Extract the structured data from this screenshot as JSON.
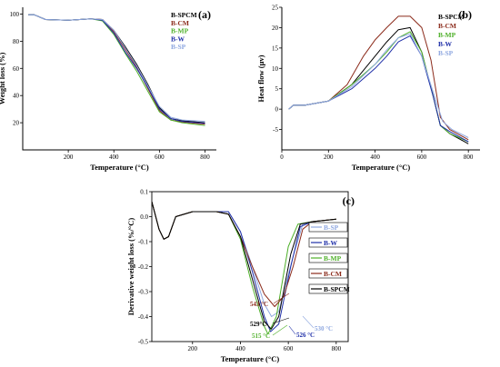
{
  "chart_data": [
    {
      "panel": "(a)",
      "type": "line",
      "xlabel": "Temperature (°C)",
      "ylabel": "Weight loss (%)",
      "xlim": [
        0,
        850
      ],
      "ylim": [
        0,
        105
      ],
      "xticks": [
        200,
        400,
        600,
        800
      ],
      "yticks": [
        20,
        40,
        60,
        80,
        100
      ],
      "legend_position": "top-right",
      "series": [
        {
          "name": "B-SPCM",
          "color": "#000000",
          "points": [
            [
              25,
              99.5
            ],
            [
              50,
              99.5
            ],
            [
              100,
              96
            ],
            [
              200,
              95.5
            ],
            [
              300,
              96.5
            ],
            [
              350,
              96
            ],
            [
              400,
              88
            ],
            [
              450,
              76
            ],
            [
              500,
              63
            ],
            [
              550,
              48
            ],
            [
              600,
              31
            ],
            [
              650,
              23
            ],
            [
              700,
              21.5
            ],
            [
              800,
              20
            ]
          ]
        },
        {
          "name": "B-CM",
          "color": "#8b2a1a",
          "points": [
            [
              25,
              99.5
            ],
            [
              50,
              99.5
            ],
            [
              100,
              96
            ],
            [
              200,
              95.5
            ],
            [
              300,
              96.5
            ],
            [
              350,
              96
            ],
            [
              400,
              87
            ],
            [
              450,
              74
            ],
            [
              500,
              61
            ],
            [
              550,
              45
            ],
            [
              600,
              29
            ],
            [
              650,
              22
            ],
            [
              700,
              20.5
            ],
            [
              800,
              19
            ]
          ]
        },
        {
          "name": "B-MP",
          "color": "#4fb02a",
          "points": [
            [
              25,
              99.5
            ],
            [
              50,
              99.5
            ],
            [
              100,
              96
            ],
            [
              200,
              95.5
            ],
            [
              300,
              96.5
            ],
            [
              350,
              95
            ],
            [
              400,
              85
            ],
            [
              450,
              71
            ],
            [
              500,
              58
            ],
            [
              550,
              43
            ],
            [
              600,
              28
            ],
            [
              650,
              22
            ],
            [
              700,
              20
            ],
            [
              800,
              18
            ]
          ]
        },
        {
          "name": "B-W",
          "color": "#1f2fa8",
          "points": [
            [
              25,
              99.5
            ],
            [
              50,
              99.5
            ],
            [
              100,
              96
            ],
            [
              200,
              95.5
            ],
            [
              300,
              96.5
            ],
            [
              350,
              95.5
            ],
            [
              400,
              86
            ],
            [
              450,
              72
            ],
            [
              500,
              60
            ],
            [
              550,
              46
            ],
            [
              600,
              30
            ],
            [
              650,
              23
            ],
            [
              700,
              21
            ],
            [
              800,
              19.5
            ]
          ]
        },
        {
          "name": "B-SP",
          "color": "#8fa8e0",
          "points": [
            [
              25,
              99.5
            ],
            [
              50,
              99.5
            ],
            [
              100,
              96
            ],
            [
              200,
              95.5
            ],
            [
              300,
              96.5
            ],
            [
              350,
              96
            ],
            [
              400,
              88
            ],
            [
              450,
              75
            ],
            [
              500,
              62
            ],
            [
              550,
              47
            ],
            [
              600,
              32
            ],
            [
              650,
              24
            ],
            [
              700,
              22
            ],
            [
              800,
              21
            ]
          ]
        }
      ]
    },
    {
      "panel": "(b)",
      "type": "line",
      "xlabel": "Temperature (°C)",
      "ylabel": "Heat flow (μv)",
      "xlim": [
        0,
        850
      ],
      "ylim": [
        -10,
        25
      ],
      "xticks": [
        0,
        200,
        400,
        600,
        800
      ],
      "yticks": [
        -5,
        0,
        5,
        10,
        15,
        20,
        25
      ],
      "legend_position": "top-right",
      "series": [
        {
          "name": "B-SPCM",
          "color": "#000000",
          "points": [
            [
              30,
              0
            ],
            [
              50,
              1
            ],
            [
              100,
              1
            ],
            [
              200,
              2
            ],
            [
              300,
              6
            ],
            [
              400,
              13
            ],
            [
              450,
              16.5
            ],
            [
              500,
              19.5
            ],
            [
              550,
              20
            ],
            [
              600,
              14
            ],
            [
              650,
              3
            ],
            [
              680,
              -4
            ],
            [
              720,
              -6
            ],
            [
              800,
              -8.5
            ]
          ]
        },
        {
          "name": "B-CM",
          "color": "#8b2a1a",
          "points": [
            [
              30,
              0
            ],
            [
              50,
              1
            ],
            [
              100,
              1
            ],
            [
              200,
              2
            ],
            [
              280,
              6
            ],
            [
              350,
              13
            ],
            [
              400,
              17
            ],
            [
              450,
              20
            ],
            [
              500,
              22.8
            ],
            [
              550,
              22.8
            ],
            [
              600,
              20
            ],
            [
              640,
              12
            ],
            [
              680,
              -2
            ],
            [
              720,
              -5
            ],
            [
              800,
              -7.5
            ]
          ]
        },
        {
          "name": "B-MP",
          "color": "#4fb02a",
          "points": [
            [
              30,
              0
            ],
            [
              50,
              1
            ],
            [
              100,
              1
            ],
            [
              200,
              2
            ],
            [
              300,
              6
            ],
            [
              400,
              11
            ],
            [
              450,
              14
            ],
            [
              500,
              17.5
            ],
            [
              550,
              19
            ],
            [
              600,
              14
            ],
            [
              650,
              3
            ],
            [
              680,
              -4
            ],
            [
              720,
              -6
            ],
            [
              800,
              -8
            ]
          ]
        },
        {
          "name": "B-W",
          "color": "#1f2fa8",
          "points": [
            [
              30,
              0
            ],
            [
              50,
              1
            ],
            [
              100,
              1
            ],
            [
              200,
              2
            ],
            [
              300,
              5
            ],
            [
              400,
              10
            ],
            [
              450,
              13
            ],
            [
              500,
              16.5
            ],
            [
              550,
              18
            ],
            [
              600,
              13
            ],
            [
              650,
              3
            ],
            [
              680,
              -4
            ],
            [
              720,
              -5.5
            ],
            [
              800,
              -8
            ]
          ]
        },
        {
          "name": "B-SP",
          "color": "#8fa8e0",
          "points": [
            [
              30,
              0
            ],
            [
              50,
              1
            ],
            [
              100,
              1
            ],
            [
              200,
              2
            ],
            [
              300,
              5.5
            ],
            [
              400,
              11
            ],
            [
              450,
              14.5
            ],
            [
              500,
              17.5
            ],
            [
              550,
              18.5
            ],
            [
              600,
              13
            ],
            [
              650,
              4
            ],
            [
              690,
              -3
            ],
            [
              730,
              -5
            ],
            [
              800,
              -7
            ]
          ]
        }
      ]
    },
    {
      "panel": "(c)",
      "type": "line",
      "xlabel": "Temperature (°C)",
      "ylabel": "Derivative weight loss (%/°C)",
      "xlim": [
        30,
        850
      ],
      "ylim": [
        -0.5,
        0.1
      ],
      "xticks": [
        200,
        400,
        600,
        800
      ],
      "yticks": [
        0.1,
        0.0,
        -0.1,
        -0.2,
        -0.3,
        -0.4,
        -0.5
      ],
      "legend_position": "right",
      "series": [
        {
          "name": "B-SP",
          "color": "#8fa8e0",
          "points": [
            [
              30,
              0.06
            ],
            [
              60,
              -0.05
            ],
            [
              80,
              -0.09
            ],
            [
              100,
              -0.08
            ],
            [
              130,
              0.0
            ],
            [
              200,
              0.02
            ],
            [
              300,
              0.02
            ],
            [
              350,
              0.02
            ],
            [
              400,
              -0.06
            ],
            [
              450,
              -0.2
            ],
            [
              500,
              -0.35
            ],
            [
              530,
              -0.4
            ],
            [
              560,
              -0.38
            ],
            [
              620,
              -0.16
            ],
            [
              660,
              -0.03
            ],
            [
              700,
              -0.02
            ],
            [
              800,
              -0.01
            ]
          ]
        },
        {
          "name": "B-W",
          "color": "#1f2fa8",
          "points": [
            [
              30,
              0.06
            ],
            [
              60,
              -0.05
            ],
            [
              80,
              -0.09
            ],
            [
              100,
              -0.08
            ],
            [
              130,
              0.0
            ],
            [
              200,
              0.02
            ],
            [
              300,
              0.02
            ],
            [
              350,
              0.02
            ],
            [
              400,
              -0.06
            ],
            [
              450,
              -0.22
            ],
            [
              500,
              -0.4
            ],
            [
              526,
              -0.46
            ],
            [
              560,
              -0.43
            ],
            [
              610,
              -0.2
            ],
            [
              650,
              -0.04
            ],
            [
              700,
              -0.02
            ],
            [
              800,
              -0.01
            ]
          ]
        },
        {
          "name": "B-MP",
          "color": "#4fb02a",
          "points": [
            [
              30,
              0.06
            ],
            [
              60,
              -0.05
            ],
            [
              80,
              -0.09
            ],
            [
              100,
              -0.08
            ],
            [
              130,
              0.0
            ],
            [
              200,
              0.02
            ],
            [
              300,
              0.02
            ],
            [
              350,
              0.01
            ],
            [
              400,
              -0.09
            ],
            [
              450,
              -0.28
            ],
            [
              500,
              -0.44
            ],
            [
              515,
              -0.47
            ],
            [
              550,
              -0.4
            ],
            [
              600,
              -0.12
            ],
            [
              640,
              -0.03
            ],
            [
              700,
              -0.02
            ],
            [
              800,
              -0.01
            ]
          ]
        },
        {
          "name": "B-CM",
          "color": "#8b2a1a",
          "points": [
            [
              30,
              0.06
            ],
            [
              60,
              -0.05
            ],
            [
              80,
              -0.09
            ],
            [
              100,
              -0.08
            ],
            [
              130,
              0.0
            ],
            [
              200,
              0.02
            ],
            [
              300,
              0.02
            ],
            [
              350,
              0.01
            ],
            [
              400,
              -0.08
            ],
            [
              450,
              -0.2
            ],
            [
              500,
              -0.31
            ],
            [
              543,
              -0.36
            ],
            [
              580,
              -0.32
            ],
            [
              620,
              -0.2
            ],
            [
              660,
              -0.05
            ],
            [
              700,
              -0.02
            ],
            [
              800,
              -0.01
            ]
          ]
        },
        {
          "name": "B-SPCM",
          "color": "#000000",
          "points": [
            [
              30,
              0.06
            ],
            [
              60,
              -0.05
            ],
            [
              80,
              -0.09
            ],
            [
              100,
              -0.08
            ],
            [
              130,
              0.0
            ],
            [
              200,
              0.02
            ],
            [
              300,
              0.02
            ],
            [
              350,
              0.01
            ],
            [
              400,
              -0.08
            ],
            [
              450,
              -0.25
            ],
            [
              500,
              -0.42
            ],
            [
              529,
              -0.45
            ],
            [
              560,
              -0.4
            ],
            [
              610,
              -0.15
            ],
            [
              650,
              -0.03
            ],
            [
              700,
              -0.02
            ],
            [
              800,
              -0.01
            ]
          ]
        }
      ],
      "annotations": [
        {
          "text": "543 °C",
          "color": "#8b2a1a"
        },
        {
          "text": "529°C",
          "color": "#000000"
        },
        {
          "text": "515 °C",
          "color": "#4fb02a"
        },
        {
          "text": "526 °C",
          "color": "#1f2fa8"
        },
        {
          "text": "530 °C",
          "color": "#8fa8e0"
        }
      ]
    }
  ]
}
